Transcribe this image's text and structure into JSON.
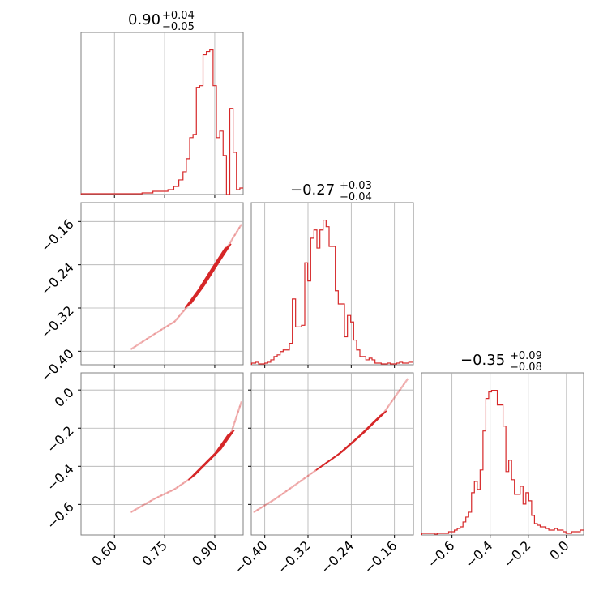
{
  "chart_data": {
    "type": "corner",
    "color": "#d62728",
    "grid": true,
    "parameters": [
      {
        "title_value": "0.90",
        "title_plus": "+0.04",
        "title_minus": "−0.05",
        "range": [
          0.5,
          0.985
        ],
        "ticks": [
          0.6,
          0.75,
          0.9
        ],
        "tick_labels": [
          "0.60",
          "0.75",
          "0.90"
        ],
        "hist": {
          "x": [
            0.52,
            0.59,
            0.63,
            0.66,
            0.705,
            0.725,
            0.75,
            0.77,
            0.785,
            0.8,
            0.81,
            0.82,
            0.83,
            0.84,
            0.85,
            0.86,
            0.87,
            0.88,
            0.89,
            0.9,
            0.91,
            0.92,
            0.93,
            0.94,
            0.95,
            0.96,
            0.97,
            0.98
          ],
          "y": [
            0.5,
            0.5,
            0.5,
            0.5,
            1,
            2,
            2,
            3,
            5,
            9,
            14,
            22,
            35,
            37,
            66,
            67,
            86,
            88,
            89,
            67,
            35,
            39,
            24,
            0,
            53,
            26,
            3,
            4
          ]
        }
      },
      {
        "title_value": "−0.27",
        "title_plus": "+0.03",
        "title_minus": "−0.04",
        "range": [
          -0.425,
          -0.125
        ],
        "ticks": [
          -0.4,
          -0.32,
          -0.24,
          -0.16
        ],
        "tick_labels": [
          "−0.40",
          "−0.32",
          "−0.24",
          "−0.16"
        ],
        "hist": {
          "x": [
            -0.42,
            -0.414,
            -0.409,
            -0.403,
            -0.397,
            -0.392,
            -0.386,
            -0.38,
            -0.374,
            -0.369,
            -0.363,
            -0.357,
            -0.352,
            -0.346,
            -0.34,
            -0.335,
            -0.329,
            -0.323,
            -0.318,
            -0.312,
            -0.306,
            -0.301,
            -0.295,
            -0.289,
            -0.284,
            -0.278,
            -0.272,
            -0.267,
            -0.261,
            -0.255,
            -0.25,
            -0.244,
            -0.238,
            -0.233,
            -0.227,
            -0.221,
            -0.216,
            -0.21,
            -0.204,
            -0.199,
            -0.193,
            -0.187,
            -0.182,
            -0.176,
            -0.17,
            -0.165,
            -0.159,
            -0.153,
            -0.148,
            -0.142,
            -0.136,
            -0.131
          ],
          "y": [
            1,
            1.5,
            0.5,
            0.5,
            1,
            1.5,
            3,
            5,
            6,
            8,
            9,
            9,
            13,
            40,
            23,
            23,
            24,
            62,
            51,
            77,
            82,
            71,
            82,
            88,
            84,
            72,
            72,
            45,
            37,
            37,
            17,
            30,
            26,
            15,
            9,
            5,
            5,
            3,
            4,
            3,
            1,
            1,
            0.5,
            0.5,
            1,
            0.5,
            0.5,
            1,
            1.5,
            1,
            1,
            1.5
          ]
        }
      },
      {
        "title_value": "−0.35",
        "title_plus": "+0.09",
        "title_minus": "−0.08",
        "range": [
          -0.76,
          0.09
        ],
        "ticks": [
          -0.6,
          -0.4,
          -0.2,
          0.0
        ],
        "tick_labels": [
          "−0.6",
          "−0.4",
          "−0.2",
          "0.0"
        ],
        "hist": {
          "x": [
            -0.745,
            -0.73,
            -0.715,
            -0.7,
            -0.685,
            -0.67,
            -0.655,
            -0.64,
            -0.625,
            -0.61,
            -0.595,
            -0.58,
            -0.565,
            -0.55,
            -0.535,
            -0.52,
            -0.505,
            -0.49,
            -0.475,
            -0.46,
            -0.445,
            -0.43,
            -0.415,
            -0.4,
            -0.385,
            -0.37,
            -0.355,
            -0.34,
            -0.325,
            -0.31,
            -0.295,
            -0.28,
            -0.265,
            -0.25,
            -0.235,
            -0.22,
            -0.205,
            -0.19,
            -0.175,
            -0.16,
            -0.145,
            -0.13,
            -0.115,
            -0.1,
            -0.085,
            -0.07,
            -0.055,
            -0.04,
            -0.025,
            -0.01,
            0.005,
            0.02,
            0.035,
            0.05,
            0.065,
            0.08
          ],
          "y": [
            1,
            1,
            1,
            1,
            0.5,
            1,
            1,
            1,
            1,
            2,
            2,
            3,
            4,
            5,
            8,
            11,
            14,
            26,
            33,
            28,
            40,
            64,
            84,
            88,
            89,
            89,
            80,
            80,
            67,
            39,
            46,
            34,
            25,
            25,
            30,
            19,
            26,
            21,
            12,
            7,
            6,
            5,
            5,
            4,
            3,
            3,
            4,
            3,
            3,
            2,
            1,
            1,
            2,
            2,
            2,
            3
          ]
        }
      }
    ],
    "contours": [
      {
        "row": 1,
        "col": 0,
        "range_x": [
          0.5,
          0.985
        ],
        "range_y": [
          -0.425,
          -0.125
        ],
        "points": [
          [
            0.65,
            -0.396
          ],
          [
            0.72,
            -0.368
          ],
          [
            0.78,
            -0.345
          ],
          [
            0.82,
            -0.316
          ],
          [
            0.86,
            -0.282
          ],
          [
            0.9,
            -0.243
          ],
          [
            0.94,
            -0.205
          ],
          [
            0.98,
            -0.165
          ]
        ]
      },
      {
        "row": 2,
        "col": 0,
        "range_x": [
          0.5,
          0.985
        ],
        "range_y": [
          -0.76,
          0.09
        ],
        "points": [
          [
            0.65,
            -0.64
          ],
          [
            0.72,
            -0.57
          ],
          [
            0.78,
            -0.52
          ],
          [
            0.83,
            -0.46
          ],
          [
            0.87,
            -0.39
          ],
          [
            0.91,
            -0.32
          ],
          [
            0.95,
            -0.22
          ],
          [
            0.98,
            -0.06
          ]
        ]
      },
      {
        "row": 2,
        "col": 1,
        "range_x": [
          -0.425,
          -0.125
        ],
        "range_y": [
          -0.76,
          0.09
        ],
        "points": [
          [
            -0.42,
            -0.64
          ],
          [
            -0.38,
            -0.57
          ],
          [
            -0.34,
            -0.49
          ],
          [
            -0.3,
            -0.41
          ],
          [
            -0.26,
            -0.33
          ],
          [
            -0.22,
            -0.23
          ],
          [
            -0.18,
            -0.12
          ],
          [
            -0.135,
            0.06
          ]
        ]
      }
    ]
  }
}
